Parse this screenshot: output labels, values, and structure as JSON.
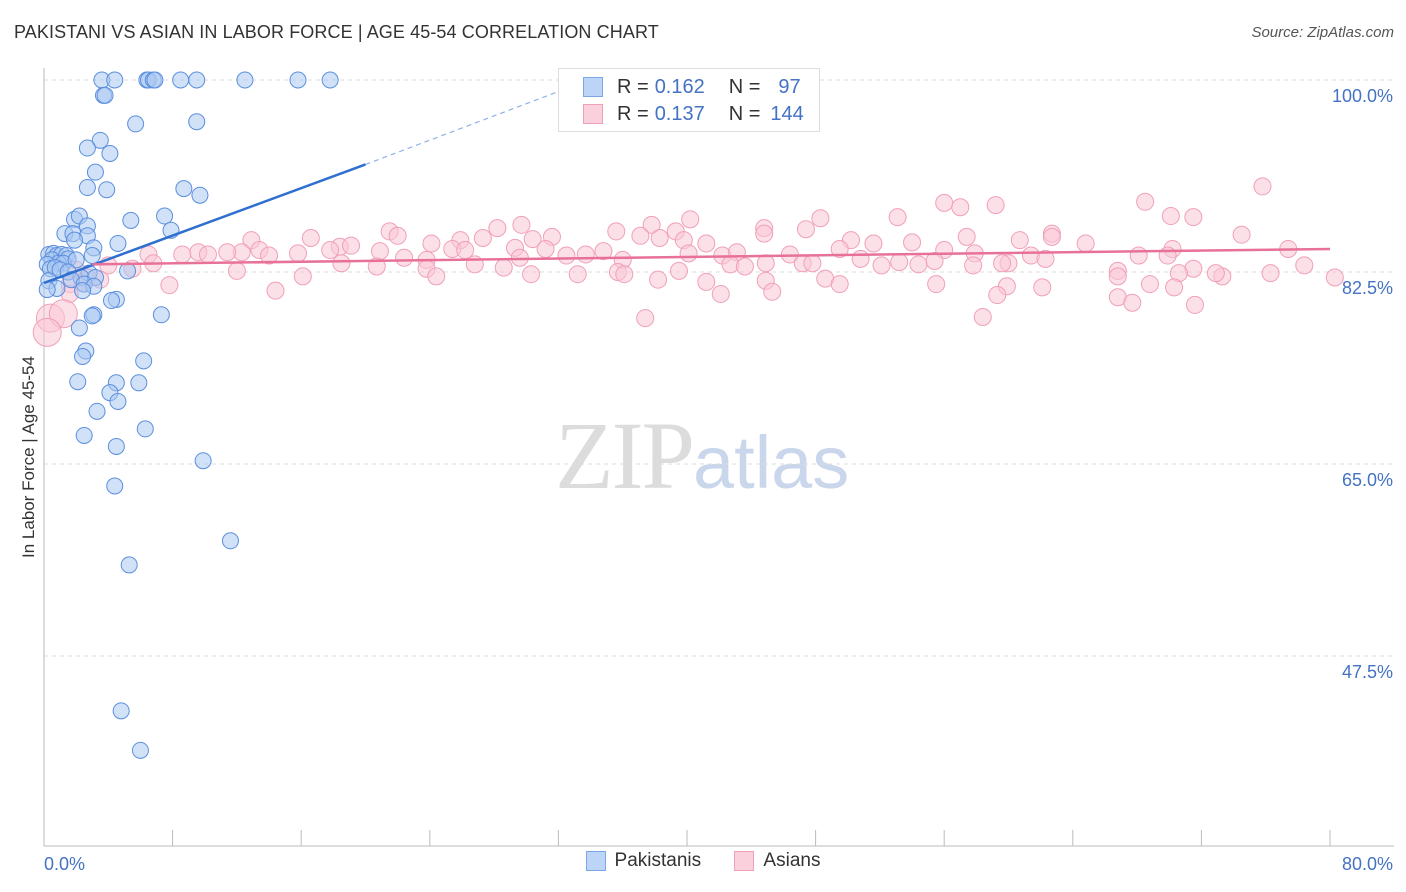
{
  "title": "PAKISTANI VS ASIAN IN LABOR FORCE | AGE 45-54 CORRELATION CHART",
  "source": "Source: ZipAtlas.com",
  "watermark": {
    "zip": "ZIP",
    "atlas": "atlas"
  },
  "stats": [
    {
      "r_label": "R =",
      "r_value": "0.162",
      "n_label": "N =",
      "n_value": "97",
      "color": "#7ba7e8"
    },
    {
      "r_label": "R =",
      "r_value": "0.137",
      "n_label": "N =",
      "n_value": "144",
      "color": "#f0a0b8"
    }
  ],
  "legend": [
    {
      "label": "Pakistanis",
      "color": "#7ba7e8"
    },
    {
      "label": "Asians",
      "color": "#f0a0b8"
    }
  ],
  "chart_data": {
    "type": "scatter",
    "ylabel": "In Labor Force | Age 45-54",
    "xlim": [
      0,
      80
    ],
    "ylim": [
      30,
      103
    ],
    "x_tick_labels": [
      "0.0%",
      "80.0%"
    ],
    "y_ticks": [
      {
        "value": 100,
        "label": "100.0%"
      },
      {
        "value": 82.5,
        "label": "82.5%"
      },
      {
        "value": 65,
        "label": "65.0%"
      },
      {
        "value": 47.5,
        "label": "47.5%"
      }
    ],
    "grid": true,
    "series": [
      {
        "name": "Pakistanis",
        "color": "#7ba7e8",
        "trend": {
          "x0": 0,
          "y0": 81.5,
          "x1": 20,
          "y1": 92.3,
          "dash_to_x": 33,
          "dash_to_y": 99.5
        },
        "points": [
          [
            3.6,
            100
          ],
          [
            4.4,
            100
          ],
          [
            6.4,
            100
          ],
          [
            6.5,
            100
          ],
          [
            6.8,
            100
          ],
          [
            6.9,
            100
          ],
          [
            8.5,
            100
          ],
          [
            9.5,
            100
          ],
          [
            12.5,
            100
          ],
          [
            15.8,
            100
          ],
          [
            17.8,
            100
          ],
          [
            3.7,
            98.6
          ],
          [
            3.8,
            98.6
          ],
          [
            5.7,
            96.0
          ],
          [
            9.5,
            96.2
          ],
          [
            3.5,
            94.5
          ],
          [
            2.7,
            93.8
          ],
          [
            4.1,
            93.3
          ],
          [
            3.2,
            91.6
          ],
          [
            2.7,
            90.2
          ],
          [
            3.9,
            90.0
          ],
          [
            8.7,
            90.1
          ],
          [
            9.7,
            89.5
          ],
          [
            7.5,
            87.6
          ],
          [
            5.4,
            87.2
          ],
          [
            1.9,
            87.3
          ],
          [
            2.2,
            87.6
          ],
          [
            2.7,
            86.7
          ],
          [
            1.3,
            86.0
          ],
          [
            1.8,
            86.0
          ],
          [
            2.7,
            85.8
          ],
          [
            7.9,
            86.3
          ],
          [
            1.9,
            85.4
          ],
          [
            4.6,
            85.1
          ],
          [
            3.1,
            84.7
          ],
          [
            0.3,
            84.1
          ],
          [
            0.6,
            84.2
          ],
          [
            0.8,
            84.0
          ],
          [
            1.1,
            84.1
          ],
          [
            1.4,
            84.0
          ],
          [
            1.5,
            83.7
          ],
          [
            0.5,
            83.6
          ],
          [
            0.9,
            83.3
          ],
          [
            1.2,
            83.3
          ],
          [
            0.2,
            83.2
          ],
          [
            2.0,
            83.6
          ],
          [
            3.0,
            84.0
          ],
          [
            0.4,
            82.8
          ],
          [
            0.7,
            82.9
          ],
          [
            1.0,
            82.7
          ],
          [
            1.5,
            82.5
          ],
          [
            2.8,
            82.4
          ],
          [
            5.2,
            82.6
          ],
          [
            2.3,
            82.0
          ],
          [
            3.2,
            82.0
          ],
          [
            1.7,
            81.8
          ],
          [
            0.3,
            81.7
          ],
          [
            2.5,
            81.4
          ],
          [
            3.1,
            81.2
          ],
          [
            0.8,
            81.0
          ],
          [
            0.2,
            80.9
          ],
          [
            2.4,
            80.8
          ],
          [
            4.5,
            80.0
          ],
          [
            4.2,
            79.9
          ],
          [
            3.1,
            78.6
          ],
          [
            3.0,
            78.5
          ],
          [
            7.3,
            78.6
          ],
          [
            2.2,
            77.4
          ],
          [
            2.6,
            75.3
          ],
          [
            2.4,
            74.8
          ],
          [
            6.2,
            74.4
          ],
          [
            2.1,
            72.5
          ],
          [
            4.5,
            72.4
          ],
          [
            5.9,
            72.4
          ],
          [
            4.1,
            71.5
          ],
          [
            4.6,
            70.7
          ],
          [
            3.3,
            69.8
          ],
          [
            6.3,
            68.2
          ],
          [
            2.5,
            67.6
          ],
          [
            4.5,
            66.6
          ],
          [
            9.9,
            65.3
          ],
          [
            4.4,
            63.0
          ],
          [
            11.6,
            58.0
          ],
          [
            5.3,
            55.8
          ],
          [
            4.8,
            42.5
          ],
          [
            6.0,
            38.9
          ]
        ]
      },
      {
        "name": "Asians",
        "color": "#f0a0b8",
        "trend": {
          "x0": 3,
          "y0": 83.2,
          "x1": 80,
          "y1": 84.6
        },
        "points": [
          [
            75.8,
            90.3
          ],
          [
            68.5,
            88.9
          ],
          [
            56.0,
            88.8
          ],
          [
            70.1,
            87.6
          ],
          [
            71.5,
            87.5
          ],
          [
            57.0,
            88.4
          ],
          [
            59.2,
            88.6
          ],
          [
            48.3,
            87.4
          ],
          [
            53.1,
            87.5
          ],
          [
            47.4,
            86.4
          ],
          [
            40.2,
            87.3
          ],
          [
            37.8,
            86.8
          ],
          [
            44.8,
            86.5
          ],
          [
            29.7,
            86.8
          ],
          [
            28.2,
            86.5
          ],
          [
            39.3,
            86.2
          ],
          [
            44.8,
            86.0
          ],
          [
            57.4,
            85.7
          ],
          [
            62.7,
            86.0
          ],
          [
            62.7,
            85.7
          ],
          [
            74.5,
            85.9
          ],
          [
            35.6,
            86.2
          ],
          [
            37.1,
            85.8
          ],
          [
            12.9,
            85.4
          ],
          [
            16.6,
            85.6
          ],
          [
            21.5,
            86.2
          ],
          [
            22.0,
            85.8
          ],
          [
            24.1,
            85.1
          ],
          [
            25.9,
            85.4
          ],
          [
            27.3,
            85.6
          ],
          [
            30.4,
            85.5
          ],
          [
            31.6,
            85.7
          ],
          [
            38.3,
            85.6
          ],
          [
            39.8,
            85.4
          ],
          [
            41.2,
            85.1
          ],
          [
            50.2,
            85.4
          ],
          [
            51.6,
            85.1
          ],
          [
            54.0,
            85.2
          ],
          [
            56.0,
            84.5
          ],
          [
            60.7,
            85.4
          ],
          [
            64.8,
            85.1
          ],
          [
            70.2,
            84.6
          ],
          [
            77.4,
            84.6
          ],
          [
            18.4,
            84.8
          ],
          [
            19.1,
            84.9
          ],
          [
            12.3,
            84.3
          ],
          [
            13.4,
            84.5
          ],
          [
            15.8,
            84.2
          ],
          [
            17.8,
            84.5
          ],
          [
            20.9,
            84.4
          ],
          [
            25.4,
            84.6
          ],
          [
            26.2,
            84.5
          ],
          [
            29.3,
            84.7
          ],
          [
            31.2,
            84.6
          ],
          [
            33.7,
            84.1
          ],
          [
            34.8,
            84.4
          ],
          [
            40.1,
            84.2
          ],
          [
            42.2,
            84.0
          ],
          [
            43.1,
            84.3
          ],
          [
            46.4,
            84.1
          ],
          [
            49.5,
            84.6
          ],
          [
            57.9,
            84.2
          ],
          [
            61.4,
            84.0
          ],
          [
            69.9,
            84.0
          ],
          [
            9.6,
            84.3
          ],
          [
            10.2,
            84.1
          ],
          [
            11.4,
            84.3
          ],
          [
            14.0,
            84.0
          ],
          [
            6.5,
            84.1
          ],
          [
            8.6,
            84.1
          ],
          [
            22.4,
            83.8
          ],
          [
            23.8,
            83.6
          ],
          [
            29.6,
            83.8
          ],
          [
            32.5,
            84.0
          ],
          [
            36.0,
            83.6
          ],
          [
            42.7,
            83.2
          ],
          [
            47.2,
            83.3
          ],
          [
            50.8,
            83.7
          ],
          [
            53.2,
            83.4
          ],
          [
            55.4,
            83.5
          ],
          [
            57.8,
            83.1
          ],
          [
            60.0,
            83.3
          ],
          [
            62.3,
            83.7
          ],
          [
            68.1,
            84.0
          ],
          [
            6.8,
            83.3
          ],
          [
            4.0,
            83.1
          ],
          [
            5.5,
            82.8
          ],
          [
            2.0,
            82.7
          ],
          [
            12.0,
            82.6
          ],
          [
            18.5,
            83.3
          ],
          [
            20.7,
            83.0
          ],
          [
            23.8,
            82.8
          ],
          [
            26.8,
            83.2
          ],
          [
            28.6,
            82.9
          ],
          [
            33.2,
            82.3
          ],
          [
            35.7,
            82.5
          ],
          [
            39.5,
            82.6
          ],
          [
            43.6,
            83.0
          ],
          [
            44.9,
            83.3
          ],
          [
            47.8,
            83.3
          ],
          [
            52.1,
            83.1
          ],
          [
            54.4,
            83.2
          ],
          [
            59.6,
            83.3
          ],
          [
            66.8,
            82.6
          ],
          [
            71.5,
            82.8
          ],
          [
            76.3,
            82.4
          ],
          [
            78.4,
            83.1
          ],
          [
            2.7,
            82.0
          ],
          [
            16.1,
            82.1
          ],
          [
            24.4,
            82.1
          ],
          [
            30.3,
            82.3
          ],
          [
            36.1,
            82.3
          ],
          [
            38.2,
            81.8
          ],
          [
            41.2,
            81.6
          ],
          [
            44.9,
            81.7
          ],
          [
            48.6,
            81.9
          ],
          [
            49.5,
            81.4
          ],
          [
            55.5,
            81.4
          ],
          [
            59.9,
            81.2
          ],
          [
            66.8,
            82.1
          ],
          [
            70.6,
            82.4
          ],
          [
            73.3,
            82.1
          ],
          [
            72.9,
            82.4
          ],
          [
            68.8,
            81.4
          ],
          [
            70.3,
            81.1
          ],
          [
            80.3,
            82.0
          ],
          [
            1.6,
            81.4
          ],
          [
            2.4,
            81.5
          ],
          [
            3.5,
            81.8
          ],
          [
            7.8,
            81.3
          ],
          [
            14.4,
            80.8
          ],
          [
            42.1,
            80.5
          ],
          [
            45.3,
            80.7
          ],
          [
            59.3,
            80.4
          ],
          [
            62.1,
            81.1
          ],
          [
            66.8,
            80.2
          ],
          [
            71.6,
            79.5
          ],
          [
            1.6,
            80.5
          ],
          [
            0.4,
            78.3
          ],
          [
            1.2,
            78.7
          ],
          [
            0.2,
            77.0
          ],
          [
            37.4,
            78.3
          ],
          [
            58.4,
            78.4
          ],
          [
            67.7,
            79.7
          ]
        ]
      }
    ]
  }
}
